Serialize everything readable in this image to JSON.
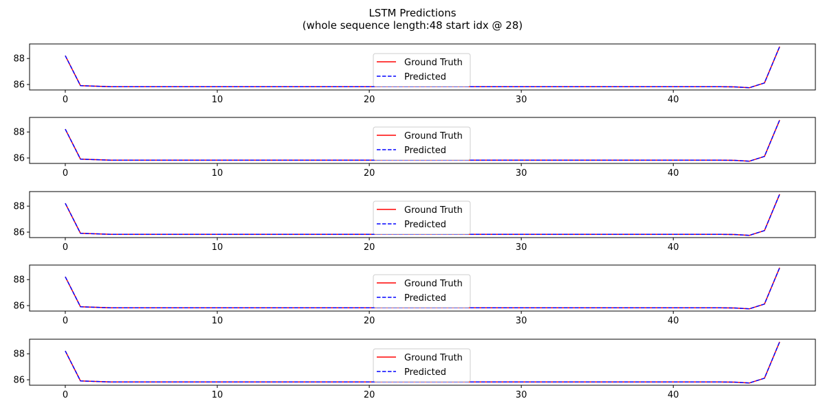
{
  "figure": {
    "title_line1": "LSTM Predictions",
    "title_line2": "(whole sequence length:48 start idx @ 28)"
  },
  "colors": {
    "ground_truth": "#ff0000",
    "predicted": "#0000ff",
    "axes": "#000000",
    "legend_border": "#cccccc"
  },
  "chart_data": [
    {
      "type": "line",
      "title": "",
      "xlabel": "",
      "ylabel": "",
      "xlim": [
        -2.35,
        49.35
      ],
      "ylim": [
        85.58,
        89.12
      ],
      "xticks": [
        0,
        10,
        20,
        30,
        40
      ],
      "yticks": [
        86,
        88
      ],
      "grid": false,
      "legend": {
        "placement": "upper center",
        "entries": [
          "Ground Truth",
          "Predicted"
        ]
      },
      "x": [
        0,
        1,
        2,
        3,
        4,
        5,
        6,
        7,
        8,
        9,
        10,
        11,
        12,
        13,
        14,
        15,
        16,
        17,
        18,
        19,
        20,
        21,
        22,
        23,
        24,
        25,
        26,
        27,
        28,
        29,
        30,
        31,
        32,
        33,
        34,
        35,
        36,
        37,
        38,
        39,
        40,
        41,
        42,
        43,
        44,
        45,
        46,
        47
      ],
      "series": [
        {
          "name": "Ground Truth",
          "style": "solid",
          "values": [
            88.22,
            85.91,
            85.87,
            85.83,
            85.83,
            85.83,
            85.83,
            85.83,
            85.83,
            85.83,
            85.83,
            85.83,
            85.83,
            85.83,
            85.83,
            85.83,
            85.83,
            85.83,
            85.83,
            85.83,
            85.83,
            85.83,
            85.83,
            85.83,
            85.83,
            85.83,
            85.83,
            85.83,
            85.83,
            85.83,
            85.83,
            85.83,
            85.83,
            85.83,
            85.83,
            85.83,
            85.83,
            85.83,
            85.83,
            85.83,
            85.83,
            85.83,
            85.83,
            85.83,
            85.82,
            85.75,
            86.12,
            88.92
          ]
        },
        {
          "name": "Predicted",
          "style": "dashed",
          "values": [
            88.22,
            85.91,
            85.87,
            85.83,
            85.83,
            85.83,
            85.83,
            85.83,
            85.83,
            85.83,
            85.83,
            85.83,
            85.83,
            85.83,
            85.83,
            85.83,
            85.83,
            85.83,
            85.83,
            85.83,
            85.83,
            85.83,
            85.83,
            85.83,
            85.83,
            85.83,
            85.83,
            85.83,
            85.83,
            85.83,
            85.83,
            85.83,
            85.83,
            85.83,
            85.83,
            85.83,
            85.83,
            85.83,
            85.83,
            85.83,
            85.83,
            85.83,
            85.83,
            85.83,
            85.82,
            85.75,
            86.12,
            88.92
          ]
        }
      ]
    },
    {
      "type": "line",
      "title": "",
      "xlabel": "",
      "ylabel": "",
      "xlim": [
        -2.35,
        49.35
      ],
      "ylim": [
        85.58,
        89.12
      ],
      "xticks": [
        0,
        10,
        20,
        30,
        40
      ],
      "yticks": [
        86,
        88
      ],
      "grid": false,
      "legend": {
        "placement": "upper center",
        "entries": [
          "Ground Truth",
          "Predicted"
        ]
      },
      "x": [
        0,
        1,
        2,
        3,
        4,
        5,
        6,
        7,
        8,
        9,
        10,
        11,
        12,
        13,
        14,
        15,
        16,
        17,
        18,
        19,
        20,
        21,
        22,
        23,
        24,
        25,
        26,
        27,
        28,
        29,
        30,
        31,
        32,
        33,
        34,
        35,
        36,
        37,
        38,
        39,
        40,
        41,
        42,
        43,
        44,
        45,
        46,
        47
      ],
      "series": [
        {
          "name": "Ground Truth",
          "style": "solid",
          "values": [
            88.22,
            85.91,
            85.87,
            85.83,
            85.83,
            85.83,
            85.83,
            85.83,
            85.83,
            85.83,
            85.83,
            85.83,
            85.83,
            85.83,
            85.83,
            85.83,
            85.83,
            85.83,
            85.83,
            85.83,
            85.83,
            85.83,
            85.83,
            85.83,
            85.83,
            85.83,
            85.83,
            85.83,
            85.83,
            85.83,
            85.83,
            85.83,
            85.83,
            85.83,
            85.83,
            85.83,
            85.83,
            85.83,
            85.83,
            85.83,
            85.83,
            85.83,
            85.83,
            85.83,
            85.82,
            85.75,
            86.12,
            88.92
          ]
        },
        {
          "name": "Predicted",
          "style": "dashed",
          "values": [
            88.22,
            85.91,
            85.87,
            85.83,
            85.83,
            85.83,
            85.83,
            85.83,
            85.83,
            85.83,
            85.83,
            85.83,
            85.83,
            85.83,
            85.83,
            85.83,
            85.83,
            85.83,
            85.83,
            85.83,
            85.83,
            85.83,
            85.83,
            85.83,
            85.83,
            85.83,
            85.83,
            85.83,
            85.83,
            85.83,
            85.83,
            85.83,
            85.83,
            85.83,
            85.83,
            85.83,
            85.83,
            85.83,
            85.83,
            85.83,
            85.83,
            85.83,
            85.83,
            85.83,
            85.82,
            85.75,
            86.12,
            88.92
          ]
        }
      ]
    },
    {
      "type": "line",
      "title": "",
      "xlabel": "",
      "ylabel": "",
      "xlim": [
        -2.35,
        49.35
      ],
      "ylim": [
        85.58,
        89.12
      ],
      "xticks": [
        0,
        10,
        20,
        30,
        40
      ],
      "yticks": [
        86,
        88
      ],
      "grid": false,
      "legend": {
        "placement": "upper center",
        "entries": [
          "Ground Truth",
          "Predicted"
        ]
      },
      "x": [
        0,
        1,
        2,
        3,
        4,
        5,
        6,
        7,
        8,
        9,
        10,
        11,
        12,
        13,
        14,
        15,
        16,
        17,
        18,
        19,
        20,
        21,
        22,
        23,
        24,
        25,
        26,
        27,
        28,
        29,
        30,
        31,
        32,
        33,
        34,
        35,
        36,
        37,
        38,
        39,
        40,
        41,
        42,
        43,
        44,
        45,
        46,
        47
      ],
      "series": [
        {
          "name": "Ground Truth",
          "style": "solid",
          "values": [
            88.22,
            85.91,
            85.87,
            85.83,
            85.83,
            85.83,
            85.83,
            85.83,
            85.83,
            85.83,
            85.83,
            85.83,
            85.83,
            85.83,
            85.83,
            85.83,
            85.83,
            85.83,
            85.83,
            85.83,
            85.83,
            85.83,
            85.83,
            85.83,
            85.83,
            85.83,
            85.83,
            85.83,
            85.83,
            85.83,
            85.83,
            85.83,
            85.83,
            85.83,
            85.83,
            85.83,
            85.83,
            85.83,
            85.83,
            85.83,
            85.83,
            85.83,
            85.83,
            85.83,
            85.82,
            85.75,
            86.12,
            88.92
          ]
        },
        {
          "name": "Predicted",
          "style": "dashed",
          "values": [
            88.22,
            85.91,
            85.87,
            85.83,
            85.83,
            85.83,
            85.83,
            85.83,
            85.83,
            85.83,
            85.83,
            85.83,
            85.83,
            85.83,
            85.83,
            85.83,
            85.83,
            85.83,
            85.83,
            85.83,
            85.83,
            85.83,
            85.83,
            85.83,
            85.83,
            85.83,
            85.83,
            85.83,
            85.83,
            85.83,
            85.83,
            85.83,
            85.83,
            85.83,
            85.83,
            85.83,
            85.83,
            85.83,
            85.83,
            85.83,
            85.83,
            85.83,
            85.83,
            85.83,
            85.82,
            85.75,
            86.12,
            88.92
          ]
        }
      ]
    },
    {
      "type": "line",
      "title": "",
      "xlabel": "",
      "ylabel": "",
      "xlim": [
        -2.35,
        49.35
      ],
      "ylim": [
        85.58,
        89.12
      ],
      "xticks": [
        0,
        10,
        20,
        30,
        40
      ],
      "yticks": [
        86,
        88
      ],
      "grid": false,
      "legend": {
        "placement": "upper center",
        "entries": [
          "Ground Truth",
          "Predicted"
        ]
      },
      "x": [
        0,
        1,
        2,
        3,
        4,
        5,
        6,
        7,
        8,
        9,
        10,
        11,
        12,
        13,
        14,
        15,
        16,
        17,
        18,
        19,
        20,
        21,
        22,
        23,
        24,
        25,
        26,
        27,
        28,
        29,
        30,
        31,
        32,
        33,
        34,
        35,
        36,
        37,
        38,
        39,
        40,
        41,
        42,
        43,
        44,
        45,
        46,
        47
      ],
      "series": [
        {
          "name": "Ground Truth",
          "style": "solid",
          "values": [
            88.22,
            85.91,
            85.87,
            85.83,
            85.83,
            85.83,
            85.83,
            85.83,
            85.83,
            85.83,
            85.83,
            85.83,
            85.83,
            85.83,
            85.83,
            85.83,
            85.83,
            85.83,
            85.83,
            85.83,
            85.83,
            85.83,
            85.83,
            85.83,
            85.83,
            85.83,
            85.83,
            85.83,
            85.83,
            85.83,
            85.83,
            85.83,
            85.83,
            85.83,
            85.83,
            85.83,
            85.83,
            85.83,
            85.83,
            85.83,
            85.83,
            85.83,
            85.83,
            85.83,
            85.82,
            85.75,
            86.12,
            88.92
          ]
        },
        {
          "name": "Predicted",
          "style": "dashed",
          "values": [
            88.22,
            85.91,
            85.87,
            85.83,
            85.83,
            85.83,
            85.83,
            85.83,
            85.83,
            85.83,
            85.83,
            85.83,
            85.83,
            85.83,
            85.83,
            85.83,
            85.83,
            85.83,
            85.83,
            85.83,
            85.83,
            85.83,
            85.83,
            85.83,
            85.83,
            85.83,
            85.83,
            85.83,
            85.83,
            85.83,
            85.83,
            85.83,
            85.83,
            85.83,
            85.83,
            85.83,
            85.83,
            85.83,
            85.83,
            85.83,
            85.83,
            85.83,
            85.83,
            85.83,
            85.82,
            85.75,
            86.12,
            88.92
          ]
        }
      ]
    },
    {
      "type": "line",
      "title": "",
      "xlabel": "",
      "ylabel": "",
      "xlim": [
        -2.35,
        49.35
      ],
      "ylim": [
        85.58,
        89.12
      ],
      "xticks": [
        0,
        10,
        20,
        30,
        40
      ],
      "yticks": [
        86,
        88
      ],
      "grid": false,
      "legend": {
        "placement": "upper center",
        "entries": [
          "Ground Truth",
          "Predicted"
        ]
      },
      "x": [
        0,
        1,
        2,
        3,
        4,
        5,
        6,
        7,
        8,
        9,
        10,
        11,
        12,
        13,
        14,
        15,
        16,
        17,
        18,
        19,
        20,
        21,
        22,
        23,
        24,
        25,
        26,
        27,
        28,
        29,
        30,
        31,
        32,
        33,
        34,
        35,
        36,
        37,
        38,
        39,
        40,
        41,
        42,
        43,
        44,
        45,
        46,
        47
      ],
      "series": [
        {
          "name": "Ground Truth",
          "style": "solid",
          "values": [
            88.22,
            85.91,
            85.87,
            85.83,
            85.83,
            85.83,
            85.83,
            85.83,
            85.83,
            85.83,
            85.83,
            85.83,
            85.83,
            85.83,
            85.83,
            85.83,
            85.83,
            85.83,
            85.83,
            85.83,
            85.83,
            85.83,
            85.83,
            85.83,
            85.83,
            85.83,
            85.83,
            85.83,
            85.83,
            85.83,
            85.83,
            85.83,
            85.83,
            85.83,
            85.83,
            85.83,
            85.83,
            85.83,
            85.83,
            85.83,
            85.83,
            85.83,
            85.83,
            85.83,
            85.82,
            85.75,
            86.12,
            88.92
          ]
        },
        {
          "name": "Predicted",
          "style": "dashed",
          "values": [
            88.22,
            85.91,
            85.87,
            85.83,
            85.83,
            85.83,
            85.83,
            85.83,
            85.83,
            85.83,
            85.83,
            85.83,
            85.83,
            85.83,
            85.83,
            85.83,
            85.83,
            85.83,
            85.83,
            85.83,
            85.83,
            85.83,
            85.83,
            85.83,
            85.83,
            85.83,
            85.83,
            85.83,
            85.83,
            85.83,
            85.83,
            85.83,
            85.83,
            85.83,
            85.83,
            85.83,
            85.83,
            85.83,
            85.83,
            85.83,
            85.83,
            85.83,
            85.83,
            85.83,
            85.82,
            85.75,
            86.12,
            88.92
          ]
        }
      ]
    }
  ]
}
